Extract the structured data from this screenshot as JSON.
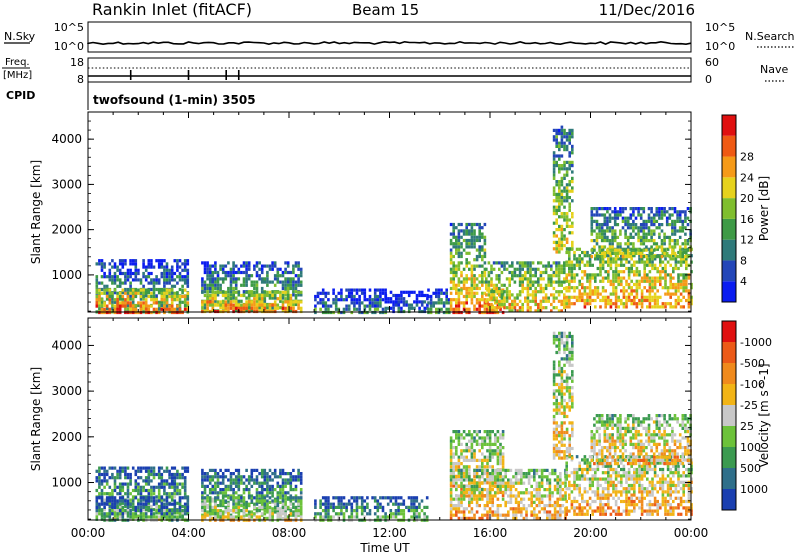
{
  "header": {
    "station": "Rankin Inlet (fitACF)",
    "beam": "Beam 15",
    "date": "11/Dec/2016"
  },
  "top_panels": {
    "nsky_label": "N.Sky",
    "nsky_ticks": [
      "10^5",
      "10^0"
    ],
    "nsearch_label": "N.Search",
    "nsearch_ticks": [
      "10^5",
      "10^0"
    ],
    "freq_label": "Freq.",
    "freq_unit": "[MHz]",
    "freq_ticks": [
      "18",
      "8"
    ],
    "nave_label": "Nave",
    "nave_ticks": [
      "60",
      "0"
    ],
    "cpid_label": "CPID",
    "cpid_text": "twofsound (1-min) 3505"
  },
  "chart_data": [
    {
      "type": "heatmap",
      "title": "",
      "xlabel": "Time UT",
      "ylabel": "Slant Range [km]",
      "x_ticks": [
        "00:00",
        "04:00",
        "08:00",
        "12:00",
        "16:00",
        "20:00",
        "00:00"
      ],
      "y_ticks": [
        1000,
        2000,
        3000,
        4000
      ],
      "ylim": [
        180,
        4600
      ],
      "colorbar": {
        "label": "Power [dB]",
        "ticks": [
          "4",
          "8",
          "12",
          "16",
          "20",
          "24",
          "28"
        ],
        "colors": [
          "#0a1cf0",
          "#2346b8",
          "#2f7a7a",
          "#3e9a46",
          "#7fbe2e",
          "#e6d21c",
          "#f59a18",
          "#ef5a14",
          "#e01010"
        ]
      },
      "patches": [
        {
          "t0": 0.3,
          "t1": 4.0,
          "r0": 200,
          "r1": 1350,
          "level": 0.45
        },
        {
          "t0": 0.3,
          "t1": 4.0,
          "r0": 200,
          "r1": 700,
          "level": 0.85
        },
        {
          "t0": 4.5,
          "t1": 8.5,
          "r0": 200,
          "r1": 1300,
          "level": 0.5
        },
        {
          "t0": 4.5,
          "t1": 8.5,
          "r0": 200,
          "r1": 650,
          "level": 0.8
        },
        {
          "t0": 9.0,
          "t1": 11.8,
          "r0": 200,
          "r1": 700,
          "level": 0.35
        },
        {
          "t0": 11.8,
          "t1": 13.5,
          "r0": 200,
          "r1": 650,
          "level": 0.25
        },
        {
          "t0": 13.5,
          "t1": 14.4,
          "r0": 200,
          "r1": 700,
          "level": 0.4
        },
        {
          "t0": 14.4,
          "t1": 15.8,
          "r0": 700,
          "r1": 2150,
          "level": 0.6
        },
        {
          "t0": 14.4,
          "t1": 16.5,
          "r0": 200,
          "r1": 700,
          "level": 0.9
        },
        {
          "t0": 15.8,
          "t1": 19.0,
          "r0": 200,
          "r1": 1300,
          "level": 0.7
        },
        {
          "t0": 19.0,
          "t1": 24.0,
          "r0": 300,
          "r1": 1600,
          "level": 0.75
        },
        {
          "t0": 20.0,
          "t1": 24.0,
          "r0": 1400,
          "r1": 2500,
          "level": 0.55
        },
        {
          "t0": 18.5,
          "t1": 19.3,
          "r0": 1500,
          "r1": 4300,
          "level": 0.6
        }
      ]
    },
    {
      "type": "heatmap",
      "title": "",
      "xlabel": "Time UT",
      "ylabel": "Slant Range [km]",
      "x_ticks": [
        "00:00",
        "04:00",
        "08:00",
        "12:00",
        "16:00",
        "20:00",
        "00:00"
      ],
      "y_ticks": [
        1000,
        2000,
        3000,
        4000
      ],
      "ylim": [
        180,
        4600
      ],
      "colorbar": {
        "label": "Velocity [m s^-1]",
        "ticks": [
          "1000",
          "500",
          "100",
          "25",
          "-25",
          "-100",
          "-500",
          "-1000"
        ],
        "colors": [
          "#1a3fb0",
          "#2f6f8a",
          "#3b9a50",
          "#6cc23a",
          "#c8c8c8",
          "#f2b416",
          "#f08a1c",
          "#ec5a18",
          "#e01010"
        ]
      },
      "patches": [
        {
          "t0": 0.3,
          "t1": 4.0,
          "r0": 200,
          "r1": 1350,
          "level": 0.45
        },
        {
          "t0": 0.3,
          "t1": 4.0,
          "r0": 200,
          "r1": 700,
          "level": 0.35
        },
        {
          "t0": 4.5,
          "t1": 8.5,
          "r0": 200,
          "r1": 1300,
          "level": 0.45
        },
        {
          "t0": 4.5,
          "t1": 8.5,
          "r0": 200,
          "r1": 700,
          "level": 0.6
        },
        {
          "t0": 9.0,
          "t1": 13.5,
          "r0": 200,
          "r1": 700,
          "level": 0.4
        },
        {
          "t0": 14.4,
          "t1": 16.5,
          "r0": 700,
          "r1": 2150,
          "level": 0.68
        },
        {
          "t0": 14.4,
          "t1": 19.0,
          "r0": 200,
          "r1": 1300,
          "level": 0.7
        },
        {
          "t0": 19.0,
          "t1": 24.0,
          "r0": 300,
          "r1": 1600,
          "level": 0.72
        },
        {
          "t0": 20.0,
          "t1": 24.0,
          "r0": 1400,
          "r1": 2500,
          "level": 0.7
        },
        {
          "t0": 18.5,
          "t1": 19.3,
          "r0": 1500,
          "r1": 4300,
          "level": 0.65
        }
      ]
    }
  ]
}
